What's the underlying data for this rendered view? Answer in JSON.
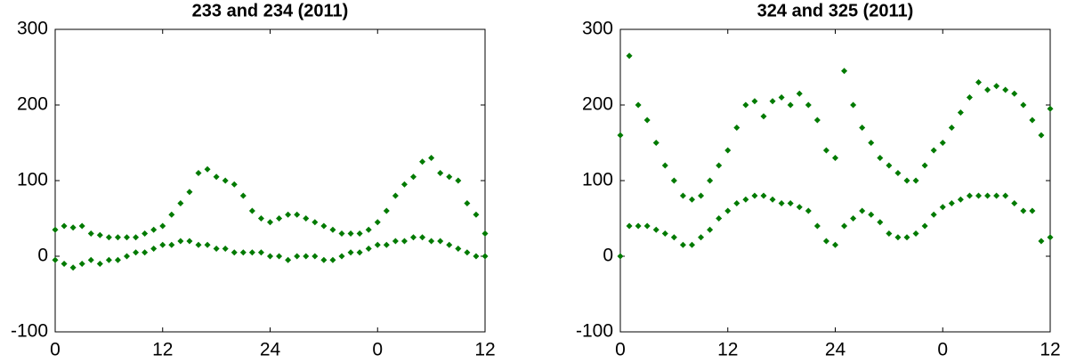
{
  "chart_data": [
    {
      "type": "scatter",
      "title": "233 and 234 (2011)",
      "color": "#007a00",
      "x": [
        0,
        1,
        2,
        3,
        4,
        5,
        6,
        7,
        8,
        9,
        10,
        11,
        12,
        13,
        14,
        15,
        16,
        17,
        18,
        19,
        20,
        21,
        22,
        23,
        24,
        25,
        26,
        27,
        28,
        29,
        30,
        31,
        32,
        33,
        34,
        35,
        36,
        37,
        38,
        39,
        40,
        41,
        42,
        43,
        44,
        45,
        46,
        47,
        48,
        0,
        1,
        2,
        3,
        4,
        5,
        6,
        7,
        8,
        9,
        10,
        11,
        12,
        13,
        14,
        15,
        16,
        17,
        18,
        19,
        20,
        21,
        22,
        23,
        24,
        25,
        26,
        27,
        28,
        29,
        30,
        31,
        32,
        33,
        34,
        35,
        36,
        37,
        38,
        39,
        40,
        41,
        42,
        43,
        44,
        45,
        46,
        47,
        48
      ],
      "values": [
        35,
        40,
        38,
        40,
        30,
        28,
        25,
        25,
        25,
        25,
        30,
        35,
        40,
        55,
        70,
        85,
        110,
        115,
        105,
        100,
        95,
        80,
        60,
        50,
        45,
        50,
        55,
        55,
        50,
        45,
        40,
        35,
        30,
        30,
        30,
        35,
        45,
        60,
        80,
        95,
        105,
        125,
        130,
        110,
        105,
        100,
        70,
        55,
        30,
        -5,
        -10,
        -15,
        -10,
        -5,
        -10,
        -5,
        -5,
        0,
        5,
        5,
        10,
        15,
        15,
        20,
        20,
        15,
        15,
        10,
        10,
        5,
        5,
        5,
        5,
        0,
        0,
        -5,
        0,
        0,
        0,
        -5,
        -5,
        0,
        5,
        5,
        10,
        15,
        15,
        20,
        20,
        25,
        25,
        20,
        20,
        15,
        10,
        5,
        0,
        0
      ],
      "xlim": [
        0,
        48
      ],
      "xticks": [
        0,
        12,
        24,
        {
          "value": 36,
          "label": "0"
        },
        {
          "value": 48,
          "label": "12"
        }
      ],
      "ylim": [
        -100,
        300
      ],
      "yticks": [
        -100,
        0,
        100,
        200,
        300
      ]
    },
    {
      "type": "scatter",
      "title": "324 and 325 (2011)",
      "color": "#007a00",
      "x": [
        0,
        1,
        2,
        3,
        4,
        5,
        6,
        7,
        8,
        9,
        10,
        11,
        12,
        13,
        14,
        15,
        16,
        17,
        18,
        19,
        20,
        21,
        22,
        23,
        24,
        25,
        26,
        27,
        28,
        29,
        30,
        31,
        32,
        33,
        34,
        35,
        36,
        37,
        38,
        39,
        40,
        41,
        42,
        43,
        44,
        45,
        46,
        47,
        48,
        0,
        1,
        2,
        3,
        4,
        5,
        6,
        7,
        8,
        9,
        10,
        11,
        12,
        13,
        14,
        15,
        16,
        17,
        18,
        19,
        20,
        21,
        22,
        23,
        24,
        25,
        26,
        27,
        28,
        29,
        30,
        31,
        32,
        33,
        34,
        35,
        36,
        37,
        38,
        39,
        40,
        41,
        42,
        43,
        44,
        45,
        46,
        47,
        48
      ],
      "values": [
        160,
        265,
        200,
        180,
        150,
        120,
        100,
        80,
        75,
        80,
        100,
        120,
        140,
        170,
        200,
        205,
        185,
        205,
        210,
        200,
        215,
        200,
        180,
        140,
        130,
        245,
        200,
        170,
        150,
        130,
        120,
        110,
        100,
        100,
        120,
        140,
        150,
        170,
        190,
        210,
        230,
        220,
        225,
        220,
        215,
        200,
        180,
        160,
        195,
        0,
        40,
        40,
        40,
        35,
        30,
        25,
        15,
        15,
        25,
        35,
        50,
        60,
        70,
        75,
        80,
        80,
        75,
        70,
        70,
        65,
        60,
        40,
        20,
        15,
        40,
        50,
        60,
        55,
        45,
        30,
        25,
        25,
        30,
        40,
        55,
        65,
        70,
        75,
        80,
        80,
        80,
        80,
        80,
        70,
        60,
        60,
        20,
        25
      ],
      "xlim": [
        0,
        48
      ],
      "xticks": [
        0,
        12,
        24,
        {
          "value": 36,
          "label": "0"
        },
        {
          "value": 48,
          "label": "12"
        }
      ],
      "ylim": [
        -100,
        300
      ],
      "yticks": [
        -100,
        0,
        100,
        200,
        300
      ]
    }
  ]
}
